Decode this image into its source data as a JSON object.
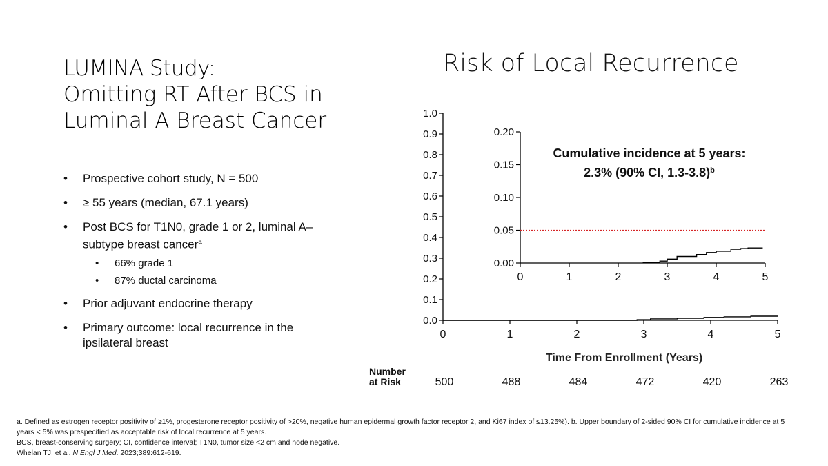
{
  "slide": {
    "title_line1": "LUMINA Study:",
    "title_line2": "Omitting RT After BCS in",
    "title_line3": "Luminal A Breast Cancer"
  },
  "bullets": [
    {
      "text": "Prospective cohort study, N = 500"
    },
    {
      "text": "≥ 55 years (median, 67.1 years)"
    },
    {
      "text": "Post BCS for T1N0, grade 1 or 2, luminal A–subtype breast cancer",
      "sup": "a",
      "sub": [
        "66% grade 1",
        "87% ductal carcinoma"
      ]
    },
    {
      "text": "Prior adjuvant endocrine therapy"
    },
    {
      "text": "Primary outcome: local recurrence in the ipsilateral breast"
    }
  ],
  "chart_data": [
    {
      "type": "line",
      "title": "Risk of Local Recurrence",
      "xlabel": "Time From Enrollment (Years)",
      "ylabel": "",
      "xlim": [
        0,
        5
      ],
      "ylim": [
        0,
        1.0
      ],
      "xticks": [
        "0",
        "1",
        "2",
        "3",
        "4",
        "5"
      ],
      "yticks": [
        "0.0",
        "0.1",
        "0.2",
        "0.3",
        "0.4",
        "0.5",
        "0.6",
        "0.7",
        "0.8",
        "0.9",
        "1.0"
      ],
      "grid": false,
      "series": [
        {
          "x": [
            0,
            2.6,
            2.9,
            3.1,
            3.5,
            3.9,
            4.2,
            4.6,
            5.0
          ],
          "y": [
            0,
            0,
            0.003,
            0.007,
            0.01,
            0.014,
            0.017,
            0.02,
            0.021
          ]
        }
      ],
      "risk_table": {
        "label_line1": "Number",
        "label_line2": "at Risk",
        "x": [
          0,
          1,
          2,
          3,
          4,
          5
        ],
        "values": [
          "500",
          "488",
          "484",
          "472",
          "420",
          "263"
        ]
      }
    },
    {
      "type": "line",
      "inset": true,
      "xlim": [
        0,
        5
      ],
      "ylim": [
        0,
        0.2
      ],
      "xticks": [
        "0",
        "1",
        "2",
        "3",
        "4",
        "5"
      ],
      "yticks": [
        "0.00",
        "0.05",
        "0.10",
        "0.15",
        "0.20"
      ],
      "reference_line": {
        "y": 0.05,
        "style": "dotted",
        "color": "#d62728"
      },
      "annotation_line1": "Cumulative incidence at 5 years:",
      "annotation_line2": "2.3% (90% CI, 1.3-3.8)",
      "annotation_sup": "b",
      "series": [
        {
          "x": [
            2.5,
            2.85,
            3.0,
            3.2,
            3.6,
            3.8,
            4.0,
            4.3,
            4.5,
            4.65,
            4.95
          ],
          "y": [
            0.001,
            0.003,
            0.006,
            0.01,
            0.013,
            0.016,
            0.018,
            0.021,
            0.022,
            0.023,
            0.023
          ]
        }
      ]
    }
  ],
  "footer": {
    "line1": "a. Defined as estrogen receptor positivity of ≥1%, progesterone receptor positivity of >20%, negative human epidermal growth factor receptor 2, and Ki67 index of ≤13.25%). b. Upper boundary of 2-sided 90% CI for cumulative incidence at 5 years < 5% was prespecified as acceptable risk of local recurrence at 5 years.",
    "line2": "BCS, breast-conserving surgery; CI, confidence interval; T1N0, tumor size <2 cm and node negative.",
    "citation_authors": "Whelan TJ, et al. ",
    "citation_journal": "N Engl J Med",
    "citation_rest": ". 2023;389:612-619."
  }
}
